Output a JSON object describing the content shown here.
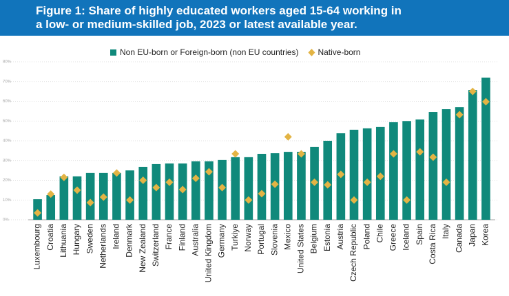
{
  "chart_data": {
    "type": "bar",
    "title": [
      "Figure 1: Share of highly educated workers aged 15-64 working in",
      "a low- or medium-skilled job, 2023 or latest available year."
    ],
    "categories": [
      "Luxembourg",
      "Croatia",
      "Lithuania",
      "Hungary",
      "Sweden",
      "Netherlands",
      "Ireland",
      "Denmark",
      "New Zealand",
      "Switzerland",
      "France",
      "Finland",
      "Australia",
      "United Kingdom",
      "Germany",
      "Turkiye",
      "Norway",
      "Portugal",
      "Slovenia",
      "Mexico",
      "United States",
      "Belgium",
      "Estonia",
      "Austria",
      "Czech Republic",
      "Poland",
      "Chile",
      "Greece",
      "Iceland",
      "Spain",
      "Costa Rica",
      "Italy",
      "Canada",
      "Japan",
      "Korea"
    ],
    "series": [
      {
        "name": "Non EU-born or Foreign-born (non EU countries)",
        "color": "#10897b",
        "mark": "bar",
        "values": [
          10.4,
          12.5,
          22,
          22,
          23.7,
          23.7,
          23.7,
          25,
          26.8,
          28.2,
          28.5,
          28.5,
          29.6,
          29.6,
          30.3,
          31.7,
          31.7,
          33.4,
          33.7,
          34.4,
          34.4,
          36.9,
          40,
          43.8,
          45.6,
          46.3,
          47,
          49.4,
          50,
          50.8,
          54.6,
          56,
          57,
          65.7,
          72
        ]
      },
      {
        "name": "Native-born",
        "color": "#e3b444",
        "mark": "diamond",
        "values": [
          3.5,
          13,
          21.5,
          15,
          8.7,
          11.5,
          23.7,
          10,
          20,
          16.3,
          19,
          15.3,
          21,
          24.3,
          16.3,
          33.4,
          10,
          13.2,
          18,
          42,
          33.4,
          19,
          17.7,
          23,
          10,
          19,
          22,
          33.4,
          10,
          34.4,
          31.7,
          19,
          53.2,
          65,
          59.8
        ]
      }
    ],
    "ylim": [
      0,
      80
    ],
    "yticks": [
      {
        "value": 0,
        "label": "0%"
      },
      {
        "value": 10,
        "label": "10%"
      },
      {
        "value": 20,
        "label": "20%"
      },
      {
        "value": 30,
        "label": "30%"
      },
      {
        "value": 40,
        "label": "40%"
      },
      {
        "value": 50,
        "label": "50%"
      },
      {
        "value": 60,
        "label": "60%"
      },
      {
        "value": 70,
        "label": "70%"
      },
      {
        "value": 80,
        "label": "80%"
      }
    ],
    "grid": true
  }
}
